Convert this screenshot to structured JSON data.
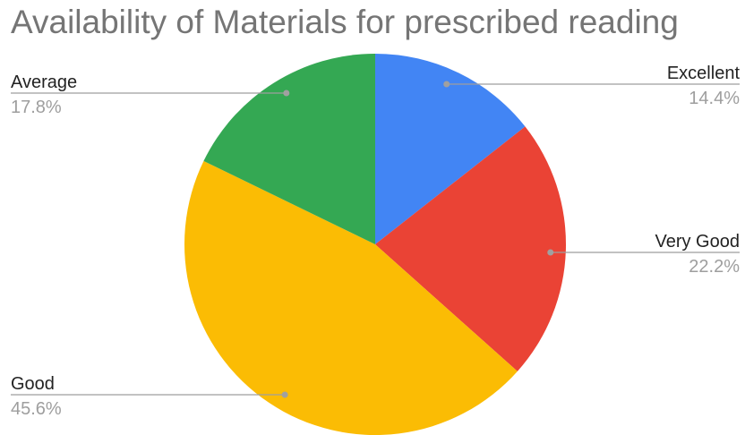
{
  "chart_data": {
    "type": "pie",
    "title": "Availability of Materials for prescribed reading",
    "slices": [
      {
        "label": "Excellent",
        "value": 14.4,
        "value_label": "14.4%",
        "color": "#4285F4"
      },
      {
        "label": "Very Good",
        "value": 22.2,
        "value_label": "22.2%",
        "color": "#EA4335"
      },
      {
        "label": "Good",
        "value": 45.6,
        "value_label": "45.6%",
        "color": "#FBBC04"
      },
      {
        "label": "Average",
        "value": 17.8,
        "value_label": "17.8%",
        "color": "#34A853"
      }
    ],
    "legend": "none"
  }
}
